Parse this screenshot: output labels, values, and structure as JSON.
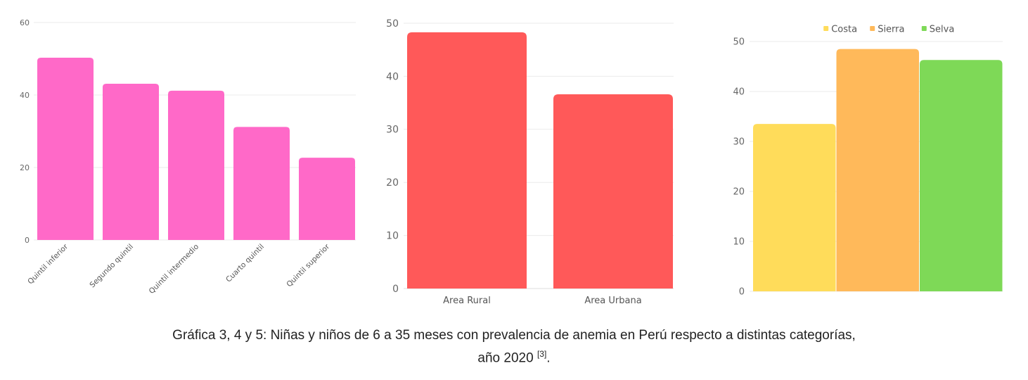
{
  "chart_data": [
    {
      "type": "bar",
      "categories": [
        "Quintil inferior",
        "Segundo quintil",
        "Quintil intermedio",
        "Cuarto quintil",
        "Quintil superior"
      ],
      "values": [
        50.3,
        43.1,
        41.2,
        31.2,
        22.7
      ],
      "ylim": [
        0,
        60
      ],
      "yticks": [
        0,
        20,
        40,
        60
      ],
      "color": "#ff69c8",
      "grid": true
    },
    {
      "type": "bar",
      "categories": [
        "Area Rural",
        "Area Urbana"
      ],
      "values": [
        48.3,
        36.6
      ],
      "ylim": [
        0,
        50
      ],
      "yticks": [
        0,
        10,
        20,
        30,
        40,
        50
      ],
      "color": "#ff5959",
      "grid": true
    },
    {
      "type": "bar",
      "categories": [
        "Costa",
        "Sierra",
        "Selva"
      ],
      "values": [
        33.5,
        48.5,
        46.3
      ],
      "ylim": [
        0,
        50
      ],
      "yticks": [
        0,
        10,
        20,
        30,
        40,
        50
      ],
      "colors": [
        "#ffdc5a",
        "#ffb95a",
        "#7ed957"
      ],
      "legend": [
        "Costa",
        "Sierra",
        "Selva"
      ],
      "legend_position": "top-center",
      "grid": true
    }
  ],
  "caption": {
    "line1": "Gráfica 3, 4 y 5: Niñas y niños de 6 a 35 meses con prevalencia de anemia en Perú respecto a distintas categorías,",
    "line2": "año 2020",
    "ref": "[3]",
    "end": "."
  }
}
